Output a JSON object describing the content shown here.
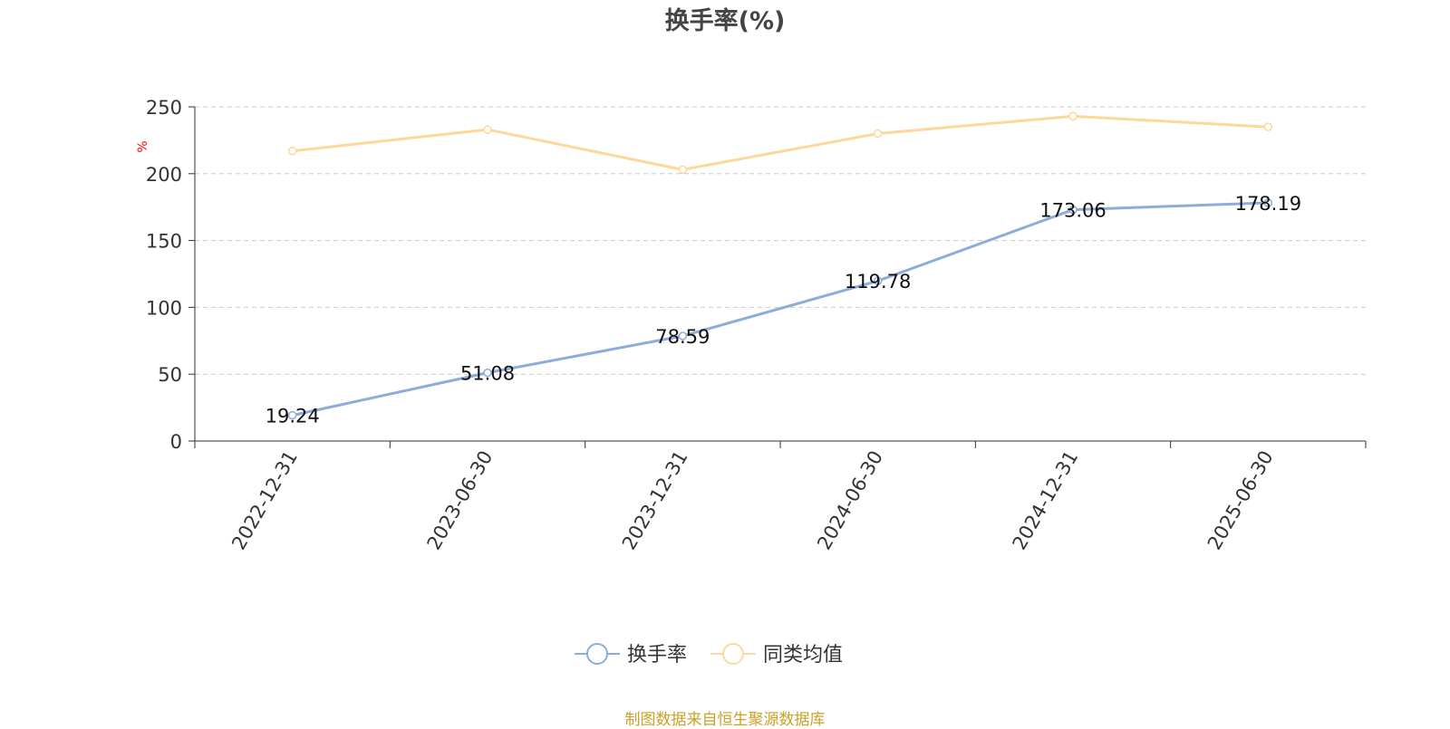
{
  "chart_data": {
    "type": "line",
    "title": "换手率(%)",
    "y_unit_label": "%",
    "categories": [
      "2022-12-31",
      "2023-06-30",
      "2023-12-31",
      "2024-06-30",
      "2024-12-31",
      "2025-06-30"
    ],
    "ylim": [
      0,
      250
    ],
    "y_ticks": [
      0,
      50,
      100,
      150,
      200,
      250
    ],
    "grid": true,
    "legend_position": "bottom-center",
    "series": [
      {
        "name": "换手率",
        "values": [
          19.24,
          51.08,
          78.59,
          119.78,
          173.06,
          178.19
        ],
        "value_labels": [
          "19.24",
          "51.08",
          "78.59",
          "119.78",
          "173.06",
          "178.19"
        ],
        "color": "#8eacd8",
        "show_labels": true
      },
      {
        "name": "同类均值",
        "values": [
          217,
          233,
          203,
          230,
          243,
          235
        ],
        "color": "#fdd89a",
        "show_labels": false
      }
    ],
    "source_note": "制图数据来自恒生聚源数据库"
  }
}
